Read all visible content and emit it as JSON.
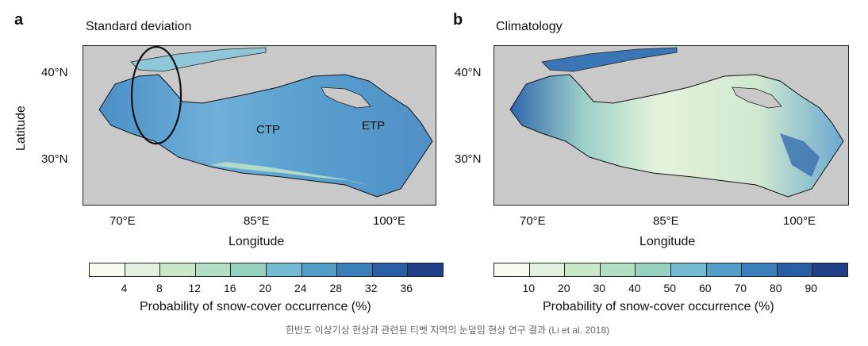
{
  "panels": [
    {
      "letter": "a",
      "title": "Standard deviation",
      "region_labels": [
        "CTP",
        "ETP"
      ],
      "colorbar": {
        "ticks": [
          "4",
          "8",
          "12",
          "16",
          "20",
          "24",
          "28",
          "32",
          "36"
        ],
        "title": "Probability of snow-cover occurrence (%)",
        "colors": [
          "#f7fbf0",
          "#e2f1dd",
          "#c8e8c8",
          "#b2dfc3",
          "#97d2c0",
          "#75bcd3",
          "#539ec9",
          "#3a7fba",
          "#2a5ea3",
          "#1f3f87"
        ]
      }
    },
    {
      "letter": "b",
      "title": "Climatology",
      "region_labels": [],
      "colorbar": {
        "ticks": [
          "10",
          "20",
          "30",
          "40",
          "50",
          "60",
          "70",
          "80",
          "90"
        ],
        "title": "Probability of snow-cover occurrence (%)",
        "colors": [
          "#f7fbf0",
          "#e2f1dd",
          "#c8e8c8",
          "#b2dfc3",
          "#97d2c0",
          "#75bcd3",
          "#539ec9",
          "#3a7fba",
          "#2a5ea3",
          "#1f3f87"
        ]
      }
    }
  ],
  "axes": {
    "x_ticks": [
      "70°E",
      "85°E",
      "100°E"
    ],
    "y_ticks": [
      "40°N",
      "30°N"
    ],
    "xlabel": "Longitude",
    "ylabel": "Latitude"
  },
  "caption": "한반도 이상기상 현상과 관련된 티벳 지역의 눈덮임 현상 연구 결과 (Li et al. 2018)"
}
